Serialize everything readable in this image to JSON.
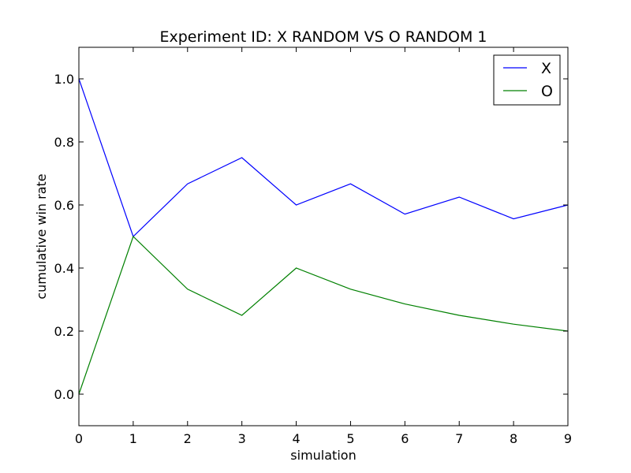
{
  "chart_data": {
    "type": "line",
    "title": "Experiment ID: X RANDOM VS O RANDOM 1",
    "xlabel": "simulation",
    "ylabel": "cumulative win rate",
    "xlim": [
      0,
      9
    ],
    "ylim": [
      -0.1,
      1.1
    ],
    "x_ticks": [
      "0",
      "1",
      "2",
      "3",
      "4",
      "5",
      "6",
      "7",
      "8",
      "9"
    ],
    "y_ticks": [
      "0.0",
      "0.2",
      "0.4",
      "0.6",
      "0.8",
      "1.0"
    ],
    "x": [
      0,
      1,
      2,
      3,
      4,
      5,
      6,
      7,
      8,
      9
    ],
    "series": [
      {
        "name": "X",
        "color": "#0000ff",
        "values": [
          1.0,
          0.5,
          0.667,
          0.75,
          0.6,
          0.667,
          0.571,
          0.625,
          0.556,
          0.6
        ]
      },
      {
        "name": "O",
        "color": "#008000",
        "values": [
          0.0,
          0.5,
          0.333,
          0.25,
          0.4,
          0.333,
          0.286,
          0.25,
          0.222,
          0.2
        ]
      }
    ],
    "grid": false,
    "legend": "top-right"
  }
}
